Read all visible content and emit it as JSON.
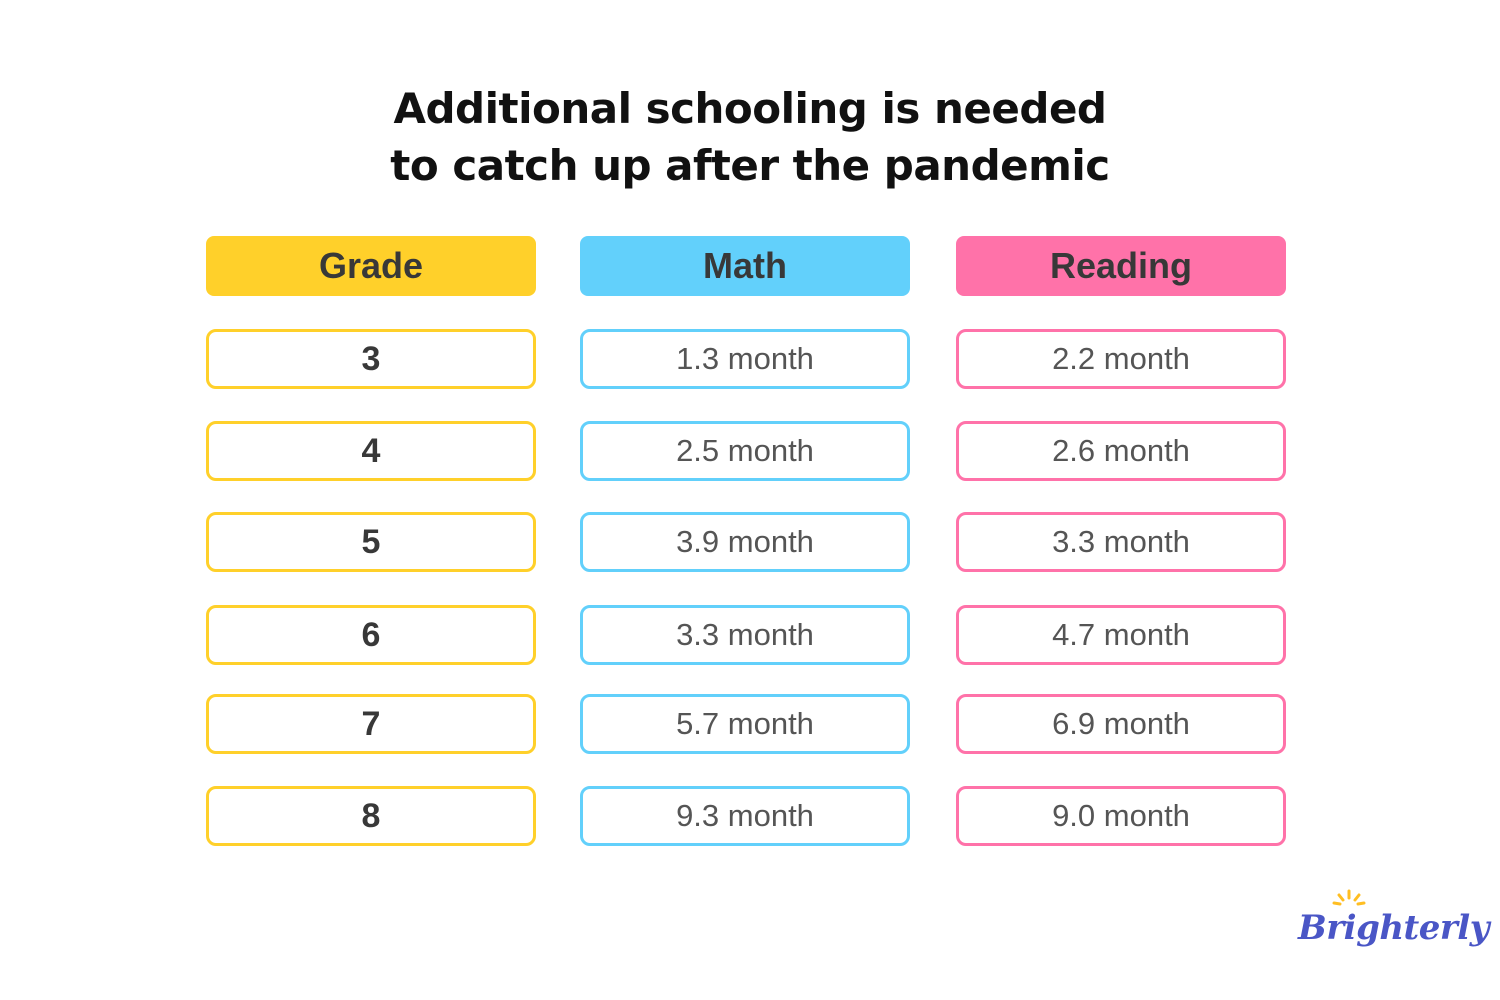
{
  "title": {
    "line1": "Additional schooling is needed",
    "line2": "to catch up after the pandemic"
  },
  "colors": {
    "grade": "#ffd02a",
    "math": "#62d0fb",
    "reading": "#ff72a9",
    "logo": "#4a56c6",
    "logo_sun": "#ffbe22"
  },
  "chart_data": {
    "type": "table",
    "title": "Additional schooling is needed to catch up after the pandemic",
    "columns": [
      "Grade",
      "Math",
      "Reading"
    ],
    "rows": [
      {
        "grade": "3",
        "math": "1.3 month",
        "reading": "2.2 month"
      },
      {
        "grade": "4",
        "math": "2.5 month",
        "reading": "2.6 month"
      },
      {
        "grade": "5",
        "math": "3.9 month",
        "reading": "3.3 month"
      },
      {
        "grade": "6",
        "math": "3.3 month",
        "reading": "4.7 month"
      },
      {
        "grade": "7",
        "math": "5.7 month",
        "reading": "6.9 month"
      },
      {
        "grade": "8",
        "math": "9.3 month",
        "reading": "9.0 month"
      }
    ]
  },
  "logo": {
    "text": "Brighterly",
    "icon": "sun-rays-icon"
  }
}
